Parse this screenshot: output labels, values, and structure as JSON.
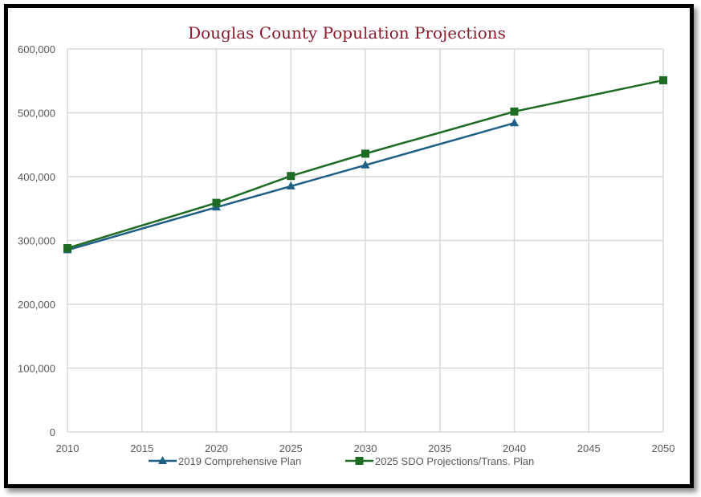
{
  "chart_data": {
    "type": "line",
    "title": "Douglas County Population Projections",
    "xlabel": "",
    "ylabel": "",
    "xlim": [
      2010,
      2050
    ],
    "ylim": [
      0,
      600000
    ],
    "x_ticks": [
      "2010",
      "2015",
      "2020",
      "2025",
      "2030",
      "2035",
      "2040",
      "2045",
      "2050"
    ],
    "y_ticks": [
      "0",
      "100,000",
      "200,000",
      "300,000",
      "400,000",
      "500,000",
      "600,000"
    ],
    "grid": true,
    "legend_position": "bottom",
    "series": [
      {
        "name": "2019 Comprehensive Plan",
        "color": "#1f5f86",
        "marker": "triangle",
        "x": [
          2010,
          2020,
          2025,
          2030,
          2040
        ],
        "values": [
          285000,
          352000,
          385000,
          418000,
          484000
        ]
      },
      {
        "name": "2025 SDO Projections/Trans. Plan",
        "color": "#1e6b23",
        "marker": "square",
        "x": [
          2010,
          2020,
          2025,
          2030,
          2040,
          2050
        ],
        "values": [
          288000,
          359000,
          401000,
          436000,
          502000,
          551000
        ]
      }
    ]
  }
}
